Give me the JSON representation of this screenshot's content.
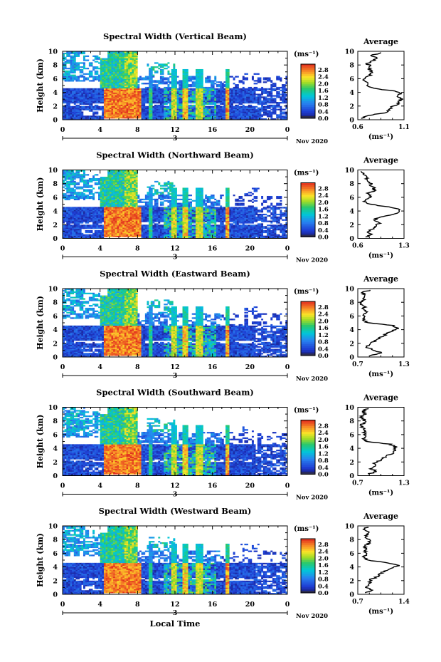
{
  "figure": {
    "xlabel": "Local Time",
    "colorbar_unit": "(ms⁻¹)",
    "colorbar_ticks": [
      "2.8",
      "2.4",
      "2.0",
      "1.6",
      "1.2",
      "0.8",
      "0.4",
      "0.0"
    ],
    "colors": {
      "missing": "#ffffff",
      "low": "#1a1a8c",
      "mid": "#00c8c8",
      "high": "#e63c1e"
    }
  },
  "chart_data": [
    {
      "type": "heatmap",
      "title": "Spectral Width (Vertical Beam)",
      "ylabel": "Height (km)",
      "xlim": [
        0,
        24
      ],
      "ylim": [
        0,
        10
      ],
      "x_ticks": [
        "0",
        "4",
        "8",
        "12",
        "16",
        "20",
        "0"
      ],
      "y_ticks": [
        "0",
        "2",
        "4",
        "6",
        "8",
        "10"
      ],
      "date_label": "3",
      "date_suffix": "Nov 2020",
      "colorbar_range": [
        0.0,
        2.8
      ],
      "average": {
        "title": "Average",
        "xlabel": "(ms⁻¹)",
        "xlim": [
          0.6,
          1.1
        ],
        "x_ticks": [
          "0.6",
          "1.1"
        ],
        "y_ticks": [
          "0",
          "2",
          "4",
          "6",
          "8",
          "10"
        ],
        "height_km": [
          0.2,
          0.6,
          1.0,
          1.4,
          1.8,
          2.2,
          2.6,
          3.0,
          3.4,
          3.8,
          4.2,
          4.6,
          5.0,
          5.4,
          5.8,
          6.2,
          6.6,
          7.0,
          7.4,
          7.8,
          8.2,
          8.6,
          9.0,
          9.4,
          9.8
        ],
        "values": [
          0.64,
          0.7,
          0.88,
          0.95,
          0.96,
          1.02,
          1.05,
          1.07,
          1.04,
          1.06,
          1.0,
          0.76,
          0.68,
          0.72,
          0.66,
          0.7,
          0.74,
          0.76,
          0.72,
          0.74,
          0.7,
          0.76,
          0.8,
          0.74,
          0.86
        ]
      }
    },
    {
      "type": "heatmap",
      "title": "Spectral Width (Northward Beam)",
      "ylabel": "Height (km)",
      "xlim": [
        0,
        24
      ],
      "ylim": [
        0,
        10
      ],
      "x_ticks": [
        "0",
        "4",
        "8",
        "12",
        "16",
        "20",
        "0"
      ],
      "y_ticks": [
        "0",
        "2",
        "4",
        "6",
        "8",
        "10"
      ],
      "date_label": "3",
      "date_suffix": "Nov 2020",
      "colorbar_range": [
        0.0,
        2.8
      ],
      "average": {
        "title": "Average",
        "xlabel": "(ms⁻¹)",
        "xlim": [
          0.6,
          1.3
        ],
        "x_ticks": [
          "0.6",
          "1.3"
        ],
        "y_ticks": [
          "0",
          "2",
          "4",
          "6",
          "8",
          "10"
        ],
        "height_km": [
          0.2,
          0.6,
          1.0,
          1.4,
          1.8,
          2.2,
          2.6,
          3.0,
          3.4,
          3.8,
          4.2,
          4.6,
          5.0,
          5.4,
          5.8,
          6.2,
          6.6,
          7.0,
          7.4,
          7.8,
          8.2,
          8.6,
          9.0,
          9.4,
          9.8
        ],
        "values": [
          0.74,
          0.8,
          0.76,
          0.82,
          0.88,
          0.92,
          0.86,
          0.9,
          1.1,
          1.22,
          1.26,
          1.05,
          0.78,
          0.7,
          0.76,
          0.8,
          0.74,
          0.86,
          0.84,
          0.8,
          0.78,
          0.72,
          0.74,
          0.7,
          0.66
        ]
      }
    },
    {
      "type": "heatmap",
      "title": "Spectral Width (Eastward Beam)",
      "ylabel": "Height (km)",
      "xlim": [
        0,
        24
      ],
      "ylim": [
        0,
        10
      ],
      "x_ticks": [
        "0",
        "4",
        "8",
        "12",
        "16",
        "20",
        "0"
      ],
      "y_ticks": [
        "0",
        "2",
        "4",
        "6",
        "8",
        "10"
      ],
      "date_label": "3",
      "date_suffix": "Nov 2020",
      "colorbar_range": [
        0.0,
        2.8
      ],
      "average": {
        "title": "Average",
        "xlabel": "(ms⁻¹)",
        "xlim": [
          0.7,
          1.3
        ],
        "x_ticks": [
          "0.7",
          "1.3"
        ],
        "y_ticks": [
          "0",
          "2",
          "4",
          "6",
          "8",
          "10"
        ],
        "height_km": [
          0.2,
          0.6,
          1.0,
          1.4,
          1.8,
          2.2,
          2.6,
          3.0,
          3.4,
          3.8,
          4.2,
          4.6,
          5.0,
          5.4,
          5.8,
          6.2,
          6.6,
          7.0,
          7.4,
          7.8,
          8.2,
          8.6,
          9.0,
          9.4,
          9.8
        ],
        "values": [
          0.88,
          1.0,
          0.92,
          0.8,
          0.86,
          0.9,
          0.96,
          1.02,
          1.08,
          1.14,
          1.22,
          1.16,
          0.84,
          0.76,
          0.8,
          0.78,
          0.82,
          0.76,
          0.8,
          0.74,
          0.76,
          0.78,
          0.8,
          0.76,
          0.86
        ]
      }
    },
    {
      "type": "heatmap",
      "title": "Spectral Width (Southward Beam)",
      "ylabel": "Height (km)",
      "xlim": [
        0,
        24
      ],
      "ylim": [
        0,
        10
      ],
      "x_ticks": [
        "0",
        "4",
        "8",
        "12",
        "16",
        "20",
        "0"
      ],
      "y_ticks": [
        "0",
        "2",
        "4",
        "6",
        "8",
        "10"
      ],
      "date_label": "3",
      "date_suffix": "Nov 2020",
      "colorbar_range": [
        0.0,
        2.8
      ],
      "average": {
        "title": "Average",
        "xlabel": "(ms⁻¹)",
        "xlim": [
          0.7,
          1.3
        ],
        "x_ticks": [
          "0.7",
          "1.3"
        ],
        "y_ticks": [
          "0",
          "2",
          "4",
          "6",
          "8",
          "10"
        ],
        "height_km": [
          0.2,
          0.6,
          1.0,
          1.4,
          1.8,
          2.2,
          2.6,
          3.0,
          3.4,
          3.8,
          4.2,
          4.6,
          5.0,
          5.4,
          5.8,
          6.2,
          6.6,
          7.0,
          7.4,
          7.8,
          8.2,
          8.6,
          9.0,
          9.4,
          9.8
        ],
        "values": [
          0.82,
          0.96,
          0.86,
          0.94,
          0.9,
          0.98,
          1.04,
          1.1,
          1.16,
          1.18,
          1.2,
          1.12,
          0.82,
          0.76,
          0.8,
          0.78,
          0.8,
          0.76,
          0.74,
          0.8,
          0.78,
          0.74,
          0.8,
          0.76,
          0.82
        ]
      }
    },
    {
      "type": "heatmap",
      "title": "Spectral Width (Westward Beam)",
      "ylabel": "Height (km)",
      "xlim": [
        0,
        24
      ],
      "ylim": [
        0,
        10
      ],
      "x_ticks": [
        "0",
        "4",
        "8",
        "12",
        "16",
        "20",
        "0"
      ],
      "y_ticks": [
        "0",
        "2",
        "4",
        "6",
        "8",
        "10"
      ],
      "date_label": "3",
      "date_suffix": "Nov 2020",
      "colorbar_range": [
        0.0,
        2.8
      ],
      "average": {
        "title": "Average",
        "xlabel": "(ms⁻¹)",
        "xlim": [
          0.7,
          1.4
        ],
        "x_ticks": [
          "0.7",
          "1.4"
        ],
        "y_ticks": [
          "0",
          "2",
          "4",
          "6",
          "8",
          "10"
        ],
        "height_km": [
          0.2,
          0.6,
          1.0,
          1.4,
          1.8,
          2.2,
          2.6,
          3.0,
          3.4,
          3.8,
          4.2,
          4.6,
          5.0,
          5.4,
          5.8,
          6.2,
          6.6,
          7.0,
          7.4,
          7.8,
          8.2,
          8.6,
          9.0,
          9.4,
          9.8
        ],
        "values": [
          0.8,
          0.94,
          0.82,
          0.86,
          0.88,
          0.9,
          1.0,
          1.04,
          1.1,
          1.2,
          1.34,
          1.16,
          0.84,
          0.78,
          0.82,
          0.8,
          0.84,
          0.8,
          0.86,
          0.88,
          0.84,
          0.82,
          0.86,
          0.8,
          0.84
        ]
      }
    }
  ]
}
